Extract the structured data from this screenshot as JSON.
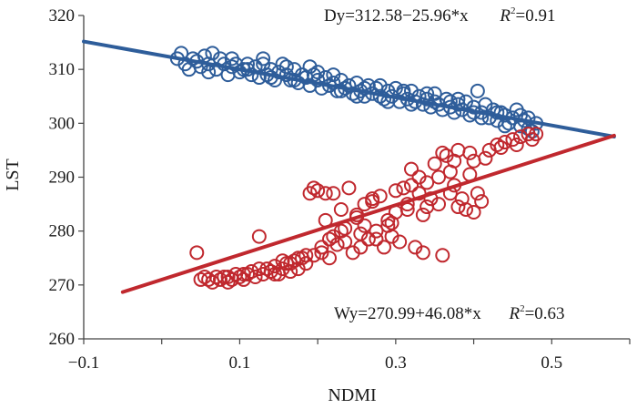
{
  "chart_data": {
    "type": "scatter",
    "xlabel": "NDMI",
    "ylabel": "LST",
    "xlim": [
      -0.1,
      0.6
    ],
    "ylim": [
      260,
      320
    ],
    "xticks": [
      "-0.1",
      "0.1",
      "0.3",
      "0.5"
    ],
    "xtick_values": [
      -0.1,
      0.1,
      0.3,
      0.5
    ],
    "yticks": [
      "260",
      "270",
      "280",
      "290",
      "300",
      "310",
      "320"
    ],
    "ytick_values": [
      260,
      270,
      280,
      290,
      300,
      310,
      320
    ],
    "grid": false,
    "legend": "none",
    "annotations": [
      {
        "text": "Dy=312.58−25.96*x",
        "r2_label": "R",
        "r2_sup": "2",
        "r2_value": "=0.91",
        "series": "Dy"
      },
      {
        "text": "Wy=270.99+46.08*x",
        "r2_label": "R",
        "r2_sup": "2",
        "r2_value": "=0.63",
        "series": "Wy"
      }
    ],
    "series": [
      {
        "color": "#2e5d9a",
        "marker": "open-circle",
        "trendline": {
          "slope": -25.96,
          "intercept": 312.58,
          "x_range": [
            -0.1,
            0.58
          ]
        },
        "points": [
          [
            0.02,
            312.0
          ],
          [
            0.025,
            313.0
          ],
          [
            0.03,
            311.0
          ],
          [
            0.035,
            310.0
          ],
          [
            0.04,
            312.0
          ],
          [
            0.045,
            311.5
          ],
          [
            0.05,
            310.5
          ],
          [
            0.055,
            312.5
          ],
          [
            0.06,
            311.0
          ],
          [
            0.065,
            313.0
          ],
          [
            0.07,
            310.0
          ],
          [
            0.075,
            312.0
          ],
          [
            0.08,
            311.0
          ],
          [
            0.085,
            309.0
          ],
          [
            0.09,
            310.5
          ],
          [
            0.095,
            311.0
          ],
          [
            0.1,
            309.5
          ],
          [
            0.105,
            310.0
          ],
          [
            0.11,
            310.0
          ],
          [
            0.115,
            309.0
          ],
          [
            0.12,
            310.5
          ],
          [
            0.125,
            308.5
          ],
          [
            0.13,
            311.0
          ],
          [
            0.135,
            309.0
          ],
          [
            0.14,
            310.0
          ],
          [
            0.145,
            308.0
          ],
          [
            0.15,
            309.5
          ],
          [
            0.155,
            311.0
          ],
          [
            0.16,
            309.0
          ],
          [
            0.165,
            308.0
          ],
          [
            0.17,
            310.0
          ],
          [
            0.175,
            307.5
          ],
          [
            0.18,
            309.0
          ],
          [
            0.185,
            308.5
          ],
          [
            0.19,
            307.0
          ],
          [
            0.195,
            309.0
          ],
          [
            0.2,
            308.0
          ],
          [
            0.205,
            306.5
          ],
          [
            0.21,
            308.5
          ],
          [
            0.215,
            307.0
          ],
          [
            0.22,
            307.5
          ],
          [
            0.225,
            306.0
          ],
          [
            0.23,
            308.0
          ],
          [
            0.235,
            306.5
          ],
          [
            0.24,
            307.0
          ],
          [
            0.245,
            305.5
          ],
          [
            0.25,
            307.5
          ],
          [
            0.255,
            306.0
          ],
          [
            0.26,
            305.0
          ],
          [
            0.265,
            307.0
          ],
          [
            0.27,
            305.5
          ],
          [
            0.275,
            306.5
          ],
          [
            0.28,
            305.0
          ],
          [
            0.285,
            304.5
          ],
          [
            0.29,
            306.0
          ],
          [
            0.295,
            305.0
          ],
          [
            0.3,
            306.5
          ],
          [
            0.305,
            304.0
          ],
          [
            0.31,
            305.5
          ],
          [
            0.315,
            304.5
          ],
          [
            0.32,
            306.0
          ],
          [
            0.325,
            304.0
          ],
          [
            0.33,
            305.0
          ],
          [
            0.335,
            303.5
          ],
          [
            0.34,
            304.5
          ],
          [
            0.345,
            303.0
          ],
          [
            0.35,
            304.0
          ],
          [
            0.355,
            303.5
          ],
          [
            0.36,
            302.5
          ],
          [
            0.365,
            304.5
          ],
          [
            0.37,
            303.0
          ],
          [
            0.375,
            302.0
          ],
          [
            0.38,
            303.5
          ],
          [
            0.385,
            302.5
          ],
          [
            0.39,
            304.0
          ],
          [
            0.395,
            301.5
          ],
          [
            0.4,
            303.0
          ],
          [
            0.405,
            306.0
          ],
          [
            0.41,
            302.0
          ],
          [
            0.415,
            303.5
          ],
          [
            0.42,
            301.0
          ],
          [
            0.425,
            302.5
          ],
          [
            0.43,
            300.5
          ],
          [
            0.435,
            302.0
          ],
          [
            0.44,
            301.5
          ],
          [
            0.445,
            300.0
          ],
          [
            0.45,
            301.0
          ],
          [
            0.455,
            302.5
          ],
          [
            0.46,
            299.5
          ],
          [
            0.465,
            300.5
          ],
          [
            0.47,
            299.0
          ],
          [
            0.475,
            298.5
          ],
          [
            0.48,
            300.0
          ],
          [
            0.11,
            311.0
          ],
          [
            0.14,
            308.5
          ],
          [
            0.17,
            308.0
          ],
          [
            0.2,
            309.5
          ],
          [
            0.23,
            306.0
          ],
          [
            0.26,
            306.5
          ],
          [
            0.29,
            304.0
          ],
          [
            0.32,
            303.5
          ],
          [
            0.35,
            305.5
          ],
          [
            0.38,
            304.5
          ],
          [
            0.41,
            301.0
          ],
          [
            0.44,
            299.5
          ],
          [
            0.47,
            301.0
          ],
          [
            0.06,
            309.5
          ],
          [
            0.09,
            312.0
          ],
          [
            0.13,
            312.0
          ],
          [
            0.16,
            310.5
          ],
          [
            0.19,
            310.5
          ],
          [
            0.22,
            309.0
          ],
          [
            0.25,
            305.0
          ],
          [
            0.28,
            307.0
          ],
          [
            0.31,
            306.0
          ],
          [
            0.34,
            305.5
          ],
          [
            0.37,
            304.0
          ],
          [
            0.4,
            302.0
          ],
          [
            0.43,
            302.0
          ],
          [
            0.46,
            301.5
          ]
        ]
      },
      {
        "color": "#c0282e",
        "marker": "open-circle",
        "trendline": {
          "slope": 46.08,
          "intercept": 270.99,
          "x_range": [
            -0.05,
            0.58
          ]
        },
        "points": [
          [
            0.045,
            276.0
          ],
          [
            0.05,
            271.0
          ],
          [
            0.055,
            271.5
          ],
          [
            0.06,
            271.0
          ],
          [
            0.065,
            270.5
          ],
          [
            0.07,
            271.5
          ],
          [
            0.075,
            271.0
          ],
          [
            0.08,
            271.5
          ],
          [
            0.085,
            270.5
          ],
          [
            0.09,
            271.0
          ],
          [
            0.095,
            272.0
          ],
          [
            0.1,
            271.5
          ],
          [
            0.105,
            271.0
          ],
          [
            0.11,
            272.0
          ],
          [
            0.115,
            272.5
          ],
          [
            0.12,
            271.5
          ],
          [
            0.125,
            279.0
          ],
          [
            0.13,
            272.0
          ],
          [
            0.135,
            273.0
          ],
          [
            0.14,
            272.5
          ],
          [
            0.145,
            273.5
          ],
          [
            0.15,
            272.0
          ],
          [
            0.155,
            273.0
          ],
          [
            0.16,
            274.0
          ],
          [
            0.165,
            272.5
          ],
          [
            0.17,
            274.5
          ],
          [
            0.175,
            273.0
          ],
          [
            0.18,
            275.0
          ],
          [
            0.185,
            274.0
          ],
          [
            0.19,
            287.0
          ],
          [
            0.195,
            288.0
          ],
          [
            0.2,
            287.5
          ],
          [
            0.205,
            276.0
          ],
          [
            0.21,
            287.0
          ],
          [
            0.215,
            275.0
          ],
          [
            0.22,
            279.0
          ],
          [
            0.225,
            277.5
          ],
          [
            0.23,
            280.0
          ],
          [
            0.235,
            278.0
          ],
          [
            0.24,
            288.0
          ],
          [
            0.245,
            276.0
          ],
          [
            0.25,
            282.5
          ],
          [
            0.255,
            279.5
          ],
          [
            0.26,
            281.0
          ],
          [
            0.265,
            278.5
          ],
          [
            0.27,
            286.0
          ],
          [
            0.275,
            280.0
          ],
          [
            0.28,
            286.5
          ],
          [
            0.285,
            277.0
          ],
          [
            0.29,
            282.0
          ],
          [
            0.295,
            279.0
          ],
          [
            0.3,
            283.5
          ],
          [
            0.305,
            278.0
          ],
          [
            0.31,
            288.0
          ],
          [
            0.315,
            285.0
          ],
          [
            0.32,
            291.5
          ],
          [
            0.325,
            277.0
          ],
          [
            0.33,
            290.0
          ],
          [
            0.335,
            276.0
          ],
          [
            0.34,
            289.0
          ],
          [
            0.345,
            286.0
          ],
          [
            0.35,
            292.5
          ],
          [
            0.355,
            285.0
          ],
          [
            0.36,
            275.5
          ],
          [
            0.365,
            294.0
          ],
          [
            0.37,
            287.0
          ],
          [
            0.375,
            293.0
          ],
          [
            0.38,
            295.0
          ],
          [
            0.385,
            286.0
          ],
          [
            0.39,
            284.0
          ],
          [
            0.395,
            294.5
          ],
          [
            0.4,
            283.5
          ],
          [
            0.405,
            287.0
          ],
          [
            0.41,
            285.5
          ],
          [
            0.42,
            295.0
          ],
          [
            0.43,
            296.0
          ],
          [
            0.44,
            296.5
          ],
          [
            0.45,
            297.0
          ],
          [
            0.46,
            297.5
          ],
          [
            0.47,
            298.0
          ],
          [
            0.155,
            274.5
          ],
          [
            0.175,
            275.0
          ],
          [
            0.195,
            275.5
          ],
          [
            0.215,
            278.5
          ],
          [
            0.235,
            280.5
          ],
          [
            0.255,
            277.0
          ],
          [
            0.275,
            278.5
          ],
          [
            0.295,
            281.5
          ],
          [
            0.315,
            284.0
          ],
          [
            0.335,
            283.0
          ],
          [
            0.355,
            290.0
          ],
          [
            0.375,
            288.5
          ],
          [
            0.395,
            290.5
          ],
          [
            0.415,
            293.5
          ],
          [
            0.435,
            295.5
          ],
          [
            0.455,
            296.0
          ],
          [
            0.475,
            297.0
          ],
          [
            0.48,
            298.0
          ],
          [
            0.23,
            284.0
          ],
          [
            0.27,
            285.5
          ],
          [
            0.21,
            282.0
          ],
          [
            0.25,
            283.0
          ],
          [
            0.29,
            281.0
          ],
          [
            0.33,
            287.0
          ],
          [
            0.37,
            291.0
          ],
          [
            0.4,
            293.0
          ],
          [
            0.22,
            287.0
          ],
          [
            0.26,
            285.0
          ],
          [
            0.3,
            287.5
          ],
          [
            0.32,
            288.5
          ],
          [
            0.34,
            284.5
          ],
          [
            0.36,
            294.5
          ],
          [
            0.38,
            284.5
          ],
          [
            0.085,
            271.5
          ],
          [
            0.105,
            272.0
          ],
          [
            0.125,
            273.0
          ],
          [
            0.145,
            272.0
          ],
          [
            0.165,
            274.0
          ],
          [
            0.185,
            275.5
          ],
          [
            0.205,
            277.0
          ]
        ]
      }
    ]
  }
}
